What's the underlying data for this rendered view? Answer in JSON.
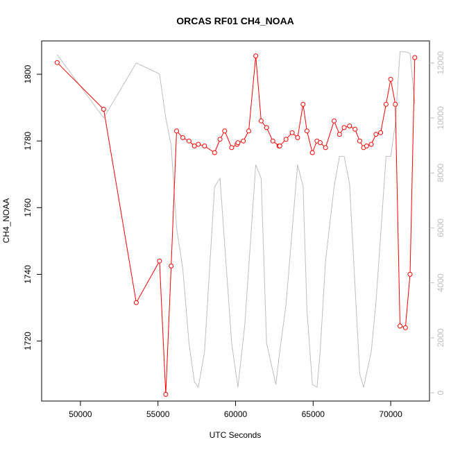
{
  "chart_data": {
    "type": "line",
    "title": "ORCAS RF01 CH4_NOAA",
    "xlabel": "UTC Seconds",
    "ylabel": "CH4_NOAA",
    "xlim": [
      47500,
      72500
    ],
    "ylim": [
      1702,
      1810
    ],
    "y2lim": [
      -300,
      12800
    ],
    "grid": false,
    "x_ticks": [
      50000,
      55000,
      60000,
      65000,
      70000
    ],
    "y_ticks": [
      1720,
      1740,
      1760,
      1780,
      1800
    ],
    "y2_ticks": [
      0,
      2000,
      4000,
      6000,
      8000,
      10000,
      12000
    ],
    "series": [
      {
        "axis": "left",
        "color": "#ff0000",
        "markers": "open-circle",
        "x": [
          48500,
          51500,
          53600,
          55100,
          55500,
          55850,
          56200,
          56600,
          57000,
          57350,
          57600,
          58000,
          58650,
          59000,
          59300,
          59750,
          60100,
          60150,
          60500,
          60850,
          61300,
          61650,
          62000,
          62400,
          62800,
          62850,
          63250,
          63650,
          64000,
          64350,
          64600,
          64950,
          65250,
          65450,
          65800,
          66350,
          66700,
          67000,
          67350,
          67700,
          68000,
          68250,
          68450,
          68750,
          69050,
          69350,
          69700,
          70000,
          70300,
          70600,
          70950,
          71250,
          71550
        ],
        "y": [
          1803.5,
          1789.5,
          1731.5,
          1744,
          1704,
          1742.5,
          1783,
          1781,
          1780,
          1778.5,
          1779,
          1778.5,
          1776.5,
          1780.5,
          1783,
          1778,
          1779,
          1779.5,
          1780,
          1783,
          1805.5,
          1786,
          1784,
          1780,
          1778.5,
          1778.5,
          1780.5,
          1782.5,
          1781,
          1791,
          1783,
          1776.5,
          1780,
          1779.5,
          1778,
          1786,
          1782,
          1784,
          1784.5,
          1783.5,
          1780,
          1778,
          1778.5,
          1779,
          1782,
          1782.5,
          1791,
          1798.5,
          1791,
          1724.5,
          1724,
          1740,
          1805
        ]
      },
      {
        "axis": "right",
        "color": "#bebebe",
        "markers": "none",
        "x": [
          48500,
          51500,
          53600,
          55100,
          55500,
          55850,
          56200,
          56600,
          57000,
          57350,
          57600,
          58000,
          58650,
          59000,
          59750,
          60150,
          60600,
          61300,
          61650,
          62000,
          62600,
          62850,
          63250,
          64000,
          64350,
          64600,
          64950,
          65250,
          65450,
          65800,
          66350,
          66700,
          67000,
          67350,
          68000,
          68250,
          68750,
          69050,
          69700,
          70000,
          70300,
          70600,
          70950,
          71250,
          71550
        ],
        "y": [
          12300,
          10000,
          12000,
          11600,
          10000,
          9000,
          6000,
          4500,
          1800,
          400,
          200,
          1500,
          7500,
          7800,
          1800,
          200,
          2500,
          8300,
          7800,
          1800,
          300,
          1500,
          3200,
          8300,
          7500,
          3000,
          300,
          200,
          1500,
          4800,
          7500,
          8600,
          8600,
          7600,
          700,
          200,
          1500,
          3300,
          8600,
          8600,
          9800,
          12400,
          12400,
          12350,
          10500
        ]
      }
    ]
  }
}
